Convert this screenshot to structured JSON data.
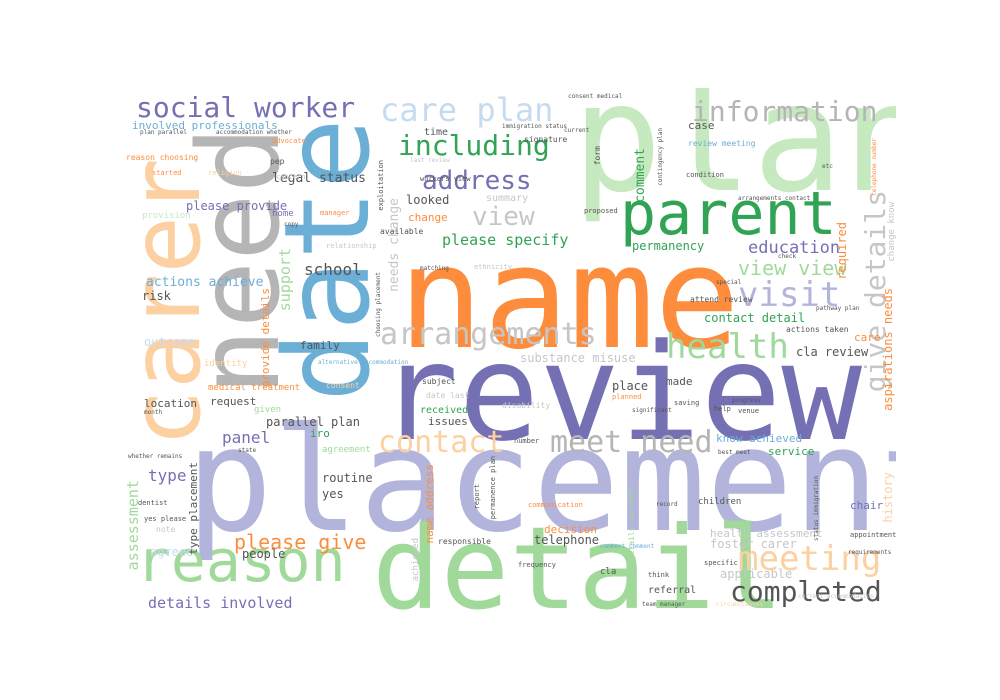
{
  "wordcloud": {
    "palette": {
      "purple": "#7570b3",
      "lav": "#b2b4dc",
      "blue": "#6baed6",
      "lblue": "#c6dbef",
      "orange": "#fd8d3c",
      "peach": "#fdd0a2",
      "green": "#31a354",
      "lgreen": "#a1d99b",
      "pgreen": "#c7e9c0",
      "gray": "#b5b5b5",
      "dgray": "#555555"
    },
    "words": {
      "plan": "plan",
      "review": "review",
      "placement": "placement",
      "name": "name",
      "date": "date",
      "need": "need",
      "detail": "detail",
      "carer": "carer",
      "parent": "parent",
      "reason": "reason",
      "arrangements": "arrangements",
      "social_worker": "social worker",
      "care_plan": "care plan",
      "information": "information",
      "including": "including",
      "address": "address",
      "view": "view",
      "visit": "visit",
      "health": "health",
      "give_details": "give details",
      "contact": "contact",
      "meet_need": "meet need",
      "meeting": "meeting",
      "completed": "completed",
      "please_give": "please give",
      "view_view": "view view",
      "education": "education",
      "please_specify": "please specify",
      "school": "school",
      "support": "support",
      "needs_change": "needs change",
      "assessment": "assessment",
      "panel": "panel",
      "type": "type",
      "details_involved": "details involved",
      "comment": "comment",
      "looked": "looked",
      "legal_status": "legal status",
      "please_provide": "please provide",
      "actions_achieve": "actions achieve",
      "risk": "risk",
      "outcome": "outcome",
      "involved_professionals": "involved professionals",
      "permanency": "permanency",
      "required": "required",
      "contact_detail": "contact detail",
      "cla_review": "cla review",
      "care": "care",
      "aspirations_needs": "aspirations needs",
      "history": "history",
      "chair": "chair",
      "foster_carer": "foster carer",
      "health_assessment": "health assessment",
      "applicable": "applicable",
      "telephone": "telephone",
      "people": "people",
      "agreed": "agreed",
      "routine": "routine",
      "yes": "yes",
      "service": "service",
      "know_achieved": "know achieved",
      "place": "place",
      "made": "made",
      "substance_misuse": "substance misuse",
      "family": "family",
      "iro": "iro",
      "parallel_plan": "parallel plan",
      "request": "request",
      "location": "location",
      "provide_details": "provide details",
      "type_placement": "type placement",
      "name_address": "name address",
      "issues": "issues",
      "received": "received",
      "summary": "summary",
      "time": "time",
      "case": "case",
      "decision": "decision",
      "change": "change",
      "home": "home",
      "referral": "referral",
      "children": "children",
      "cla": "cla",
      "identity": "identity",
      "medical_treatment": "medical treatment",
      "given": "given",
      "subject": "subject",
      "date_last": "date last",
      "disability": "disability",
      "review_meeting": "review meeting",
      "attend_review": "attend review",
      "actions_taken": "actions taken",
      "pep": "pep",
      "started": "started",
      "religion": "religion",
      "concern": "concern",
      "exploitation": "exploitation",
      "signature": "signature",
      "form": "form",
      "immigration_status": "immigration status",
      "consent_medical": "consent medical",
      "contingency_plan": "contingency plan",
      "condition": "condition",
      "change_know": "change know",
      "advocate": "advocate",
      "reason_choosing": "reason choosing",
      "provision": "provision",
      "manager": "manager",
      "relationship": "relationship",
      "available": "available",
      "ethnicity": "ethnicity",
      "proposed": "proposed",
      "note": "note",
      "dentist": "dentist",
      "yes_please": "yes please",
      "agreement": "agreement",
      "consent": "consent",
      "frequency": "frequency",
      "responsible": "responsible",
      "communication": "communication",
      "specific": "specific",
      "think": "think",
      "appointment": "appointment",
      "current_accommodation": "current accommodation",
      "team_manager": "team manager",
      "report": "report",
      "details_current": "details current",
      "achieved": "achieved",
      "permanence_plan": "permanence plan",
      "number": "number",
      "planned": "planned",
      "saving": "saving",
      "help": "help",
      "venue": "venue",
      "month": "month",
      "whether_remains": "whether remains",
      "workers_view": "workers view",
      "last_review": "last review",
      "plan_parallel": "plan parallel",
      "accommodation_whether": "accommodation whether",
      "pathway_plan": "pathway plan",
      "etc": "etc",
      "telephone_number": "telephone number",
      "arrangements_contact": "arrangements contact",
      "special": "special",
      "best_meet": "best meet",
      "circumstances": "circumstances",
      "status_immigration": "status immigration",
      "record": "record",
      "comment_comment": "comment comment",
      "requirements": "requirements",
      "choosing_placement": "choosing placement",
      "alternative_accommodation": "alternative accommodation",
      "check": "check",
      "progress": "progress",
      "significant": "significant",
      "matching": "matching",
      "current": "current",
      "copy": "copy",
      "state": "state"
    }
  }
}
